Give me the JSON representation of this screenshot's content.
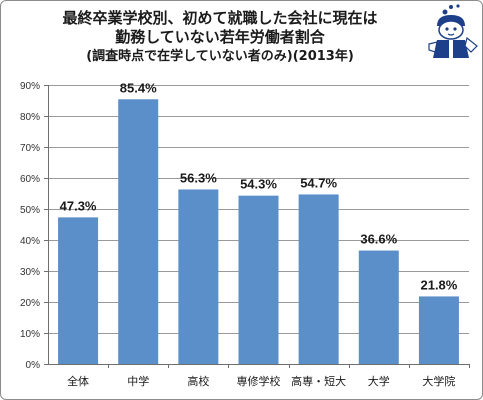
{
  "title": {
    "line1": "最終卒業学校別、初めて就職した会社に現在は",
    "line2": "勤務していない若年労働者割合",
    "line3": "(調査時点で在学していない者のみ)(2013年)"
  },
  "chart_data": {
    "type": "bar",
    "categories": [
      "全体",
      "中学",
      "高校",
      "専修学校",
      "高専・短大",
      "大学",
      "大学院"
    ],
    "values": [
      47.3,
      85.4,
      56.3,
      54.3,
      54.7,
      36.6,
      21.8
    ],
    "data_labels": [
      "47.3%",
      "85.4%",
      "56.3%",
      "54.3%",
      "54.7%",
      "36.6%",
      "21.8%"
    ],
    "y_ticks": [
      {
        "value": 0,
        "label": "0%"
      },
      {
        "value": 10,
        "label": "10%"
      },
      {
        "value": 20,
        "label": "20%"
      },
      {
        "value": 30,
        "label": "30%"
      },
      {
        "value": 40,
        "label": "40%"
      },
      {
        "value": 50,
        "label": "50%"
      },
      {
        "value": 60,
        "label": "60%"
      },
      {
        "value": 70,
        "label": "70%"
      },
      {
        "value": 80,
        "label": "80%"
      },
      {
        "value": 90,
        "label": "90%"
      }
    ],
    "ylim": [
      0,
      90
    ],
    "grid": true,
    "legend": "none",
    "bar_color": "#5b8fc9",
    "grid_color": "#9a9a9a"
  }
}
